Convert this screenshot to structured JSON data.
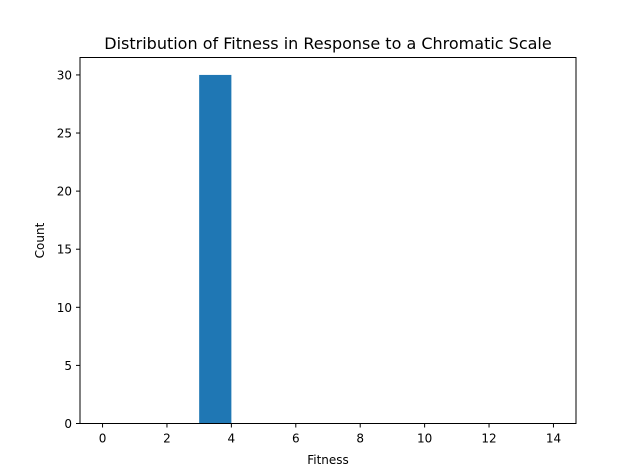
{
  "chart_data": {
    "type": "bar",
    "title": "Distribution of Fitness in Response to a Chromatic Scale",
    "xlabel": "Fitness",
    "ylabel": "Count",
    "xlim": [
      -0.7,
      14.7
    ],
    "ylim": [
      0,
      31.5
    ],
    "x_ticks": [
      0,
      2,
      4,
      6,
      8,
      10,
      12,
      14
    ],
    "y_ticks": [
      0,
      5,
      10,
      15,
      20,
      25,
      30
    ],
    "bins": [
      {
        "x0": 3,
        "x1": 4,
        "count": 30
      }
    ],
    "bar_color": "#1f77b4",
    "grid": false,
    "legend": false
  }
}
